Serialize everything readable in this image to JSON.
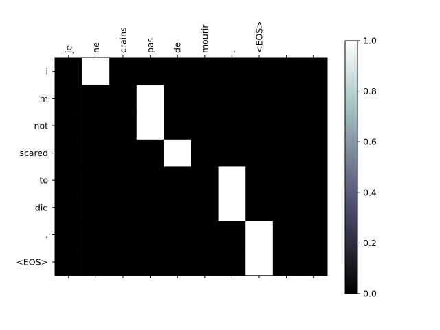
{
  "chart_data": {
    "type": "heatmap",
    "x_labels": [
      "je",
      "ne",
      "crains",
      "pas",
      "de",
      "mourir",
      ".",
      "<EOS>",
      "",
      ""
    ],
    "y_labels": [
      "i",
      "m",
      "not",
      "scared",
      "to",
      "die",
      ".",
      "<EOS>"
    ],
    "values": [
      [
        0,
        1,
        0,
        0,
        0,
        0,
        0,
        0,
        0,
        0
      ],
      [
        0,
        0,
        0,
        1,
        0,
        0,
        0,
        0,
        0,
        0
      ],
      [
        0,
        0,
        0,
        1,
        0,
        0,
        0,
        0,
        0,
        0
      ],
      [
        0,
        0,
        0,
        0,
        1,
        0,
        0,
        0,
        0,
        0
      ],
      [
        0,
        0,
        0,
        0,
        0,
        0,
        1,
        0,
        0,
        0
      ],
      [
        0,
        0,
        0,
        0,
        0,
        0,
        1,
        0,
        0,
        0
      ],
      [
        0,
        0,
        0,
        0,
        0,
        0,
        0,
        1,
        0,
        0
      ],
      [
        0,
        0,
        0,
        0,
        0,
        0,
        0,
        1,
        0,
        0
      ]
    ],
    "colormap": "bone",
    "colorbar": {
      "range": [
        0.0,
        1.0
      ],
      "ticks": [
        "0.0",
        "0.2",
        "0.4",
        "0.6",
        "0.8",
        "1.0"
      ]
    },
    "x_tick_position": "top",
    "grid": false
  }
}
